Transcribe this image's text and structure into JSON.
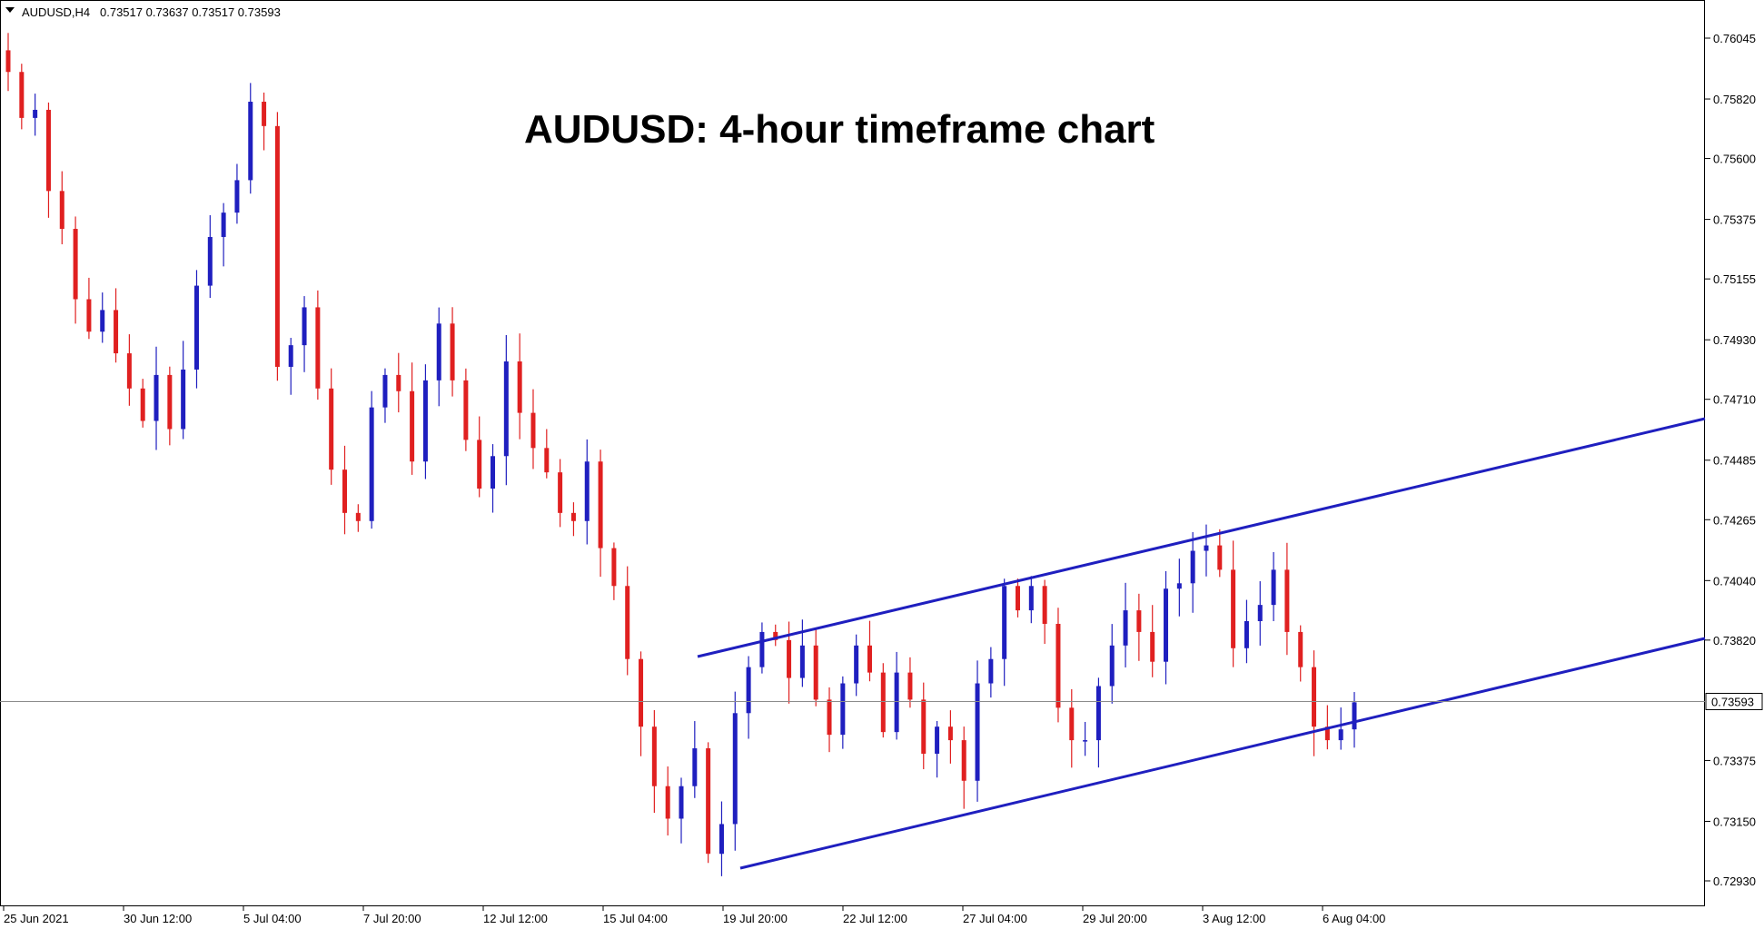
{
  "header": {
    "symbol": "AUDUSD,H4",
    "ohlc": "0.73517 0.73637 0.73517 0.73593"
  },
  "title": "AUDUSD: 4-hour timeframe chart",
  "colors": {
    "background": "#ffffff",
    "bull": "#1f1fbf",
    "bear": "#e02020",
    "channel": "#1f1fbf",
    "price_line": "#8c8c8c",
    "axis": "#000000"
  },
  "chart_data": {
    "type": "candlestick",
    "title": "AUDUSD: 4-hour timeframe chart",
    "ylim": [
      0.7285,
      0.7611
    ],
    "y_ticks": [
      "0.76045",
      "0.75820",
      "0.75600",
      "0.75375",
      "0.75155",
      "0.74930",
      "0.74710",
      "0.74485",
      "0.74265",
      "0.74040",
      "0.73820",
      "0.73593",
      "0.73375",
      "0.73150",
      "0.72930"
    ],
    "x_ticks": [
      "25 Jun 2021",
      "30 Jun 12:00",
      "5 Jul 04:00",
      "7 Jul 20:00",
      "12 Jul 12:00",
      "15 Jul 04:00",
      "19 Jul 20:00",
      "22 Jul 12:00",
      "27 Jul 04:00",
      "29 Jul 20:00",
      "3 Aug 12:00",
      "6 Aug 04:00"
    ],
    "current_price": "0.73593",
    "close_series": [
      0.7592,
      0.7575,
      0.7578,
      0.7548,
      0.7534,
      0.7508,
      0.7496,
      0.7504,
      0.7488,
      0.7475,
      0.7463,
      0.748,
      0.746,
      0.7482,
      0.7513,
      0.7531,
      0.754,
      0.7552,
      0.7581,
      0.7572,
      0.7483,
      0.7491,
      0.7505,
      0.7475,
      0.7445,
      0.7429,
      0.7426,
      0.7468,
      0.748,
      0.7474,
      0.7448,
      0.7478,
      0.7499,
      0.7478,
      0.7456,
      0.7438,
      0.745,
      0.7485,
      0.7466,
      0.7453,
      0.7444,
      0.7429,
      0.7426,
      0.7448,
      0.7416,
      0.7402,
      0.7375,
      0.735,
      0.7328,
      0.7316,
      0.7328,
      0.7342,
      0.7303,
      0.7314,
      0.7355,
      0.7372,
      0.7385,
      0.7382,
      0.7368,
      0.738,
      0.736,
      0.7347,
      0.7366,
      0.738,
      0.737,
      0.7348,
      0.737,
      0.736,
      0.734,
      0.735,
      0.7345,
      0.733,
      0.7366,
      0.7375,
      0.7402,
      0.7393,
      0.7402,
      0.7388,
      0.7357,
      0.7345,
      0.7345,
      0.7365,
      0.738,
      0.7393,
      0.7385,
      0.7374,
      0.7401,
      0.7403,
      0.7415,
      0.7417,
      0.7408,
      0.7379,
      0.7389,
      0.7395,
      0.7408,
      0.7385,
      0.7372,
      0.735,
      0.7345,
      0.7349,
      0.7359
    ]
  },
  "channels": [
    {
      "name": "upper-channel-line",
      "from": {
        "date": "19 Jul 08:00",
        "price": 0.7378
      },
      "to": {
        "date": "10 Aug 00:00",
        "price": 0.7468
      }
    },
    {
      "name": "lower-channel-line",
      "from": {
        "date": "20 Jul 08:00",
        "price": 0.7298
      },
      "to": {
        "date": "10 Aug 00:00",
        "price": 0.7384
      }
    }
  ]
}
